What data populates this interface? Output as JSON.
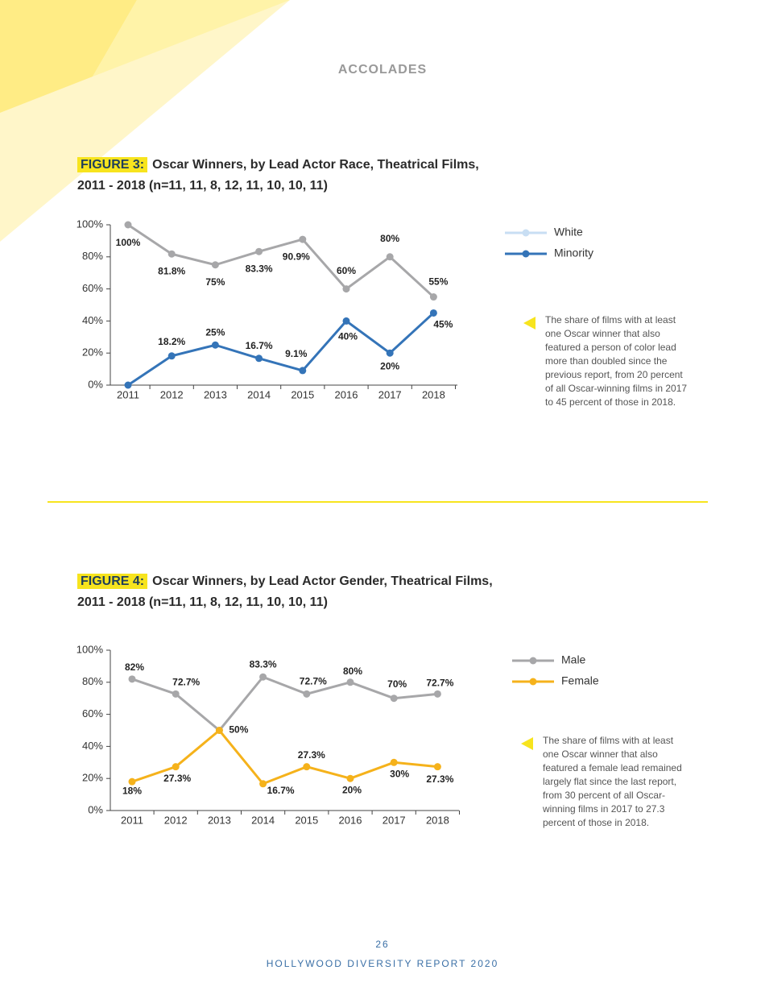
{
  "header": "ACCOLADES",
  "chart_data": [
    {
      "type": "line",
      "figure_label": "FIGURE 3:",
      "title": "Oscar Winners, by Lead Actor Race, Theatrical Films, 2011 - 2018 (n=11, 11, 8, 12, 11, 10, 10, 11)",
      "categories": [
        "2011",
        "2012",
        "2013",
        "2014",
        "2015",
        "2016",
        "2017",
        "2018"
      ],
      "series": [
        {
          "name": "White",
          "color": "#a7a7a9",
          "legend_color": "#c8def3",
          "values": [
            100,
            81.8,
            75,
            83.3,
            90.9,
            60,
            80,
            55
          ],
          "value_labels": [
            "100%",
            "81.8%",
            "75%",
            "83.3%",
            "90.9%",
            "60%",
            "80%",
            "55%"
          ]
        },
        {
          "name": "Minority",
          "color": "#3474b8",
          "legend_color": "#3474b8",
          "values": [
            0,
            18.2,
            25,
            16.7,
            9.1,
            40,
            20,
            45
          ],
          "value_labels": [
            null,
            "18.2%",
            "25%",
            "16.7%",
            "9.1%",
            "40%",
            "20%",
            "45%"
          ]
        }
      ],
      "ylim": [
        0,
        100
      ],
      "yticks": [
        {
          "value": 0,
          "label": "0%"
        },
        {
          "value": 20,
          "label": "20%"
        },
        {
          "value": 40,
          "label": "40%"
        },
        {
          "value": 60,
          "label": "60%"
        },
        {
          "value": 80,
          "label": "80%"
        },
        {
          "value": 100,
          "label": "100%"
        }
      ],
      "note": "The share of films with at least one Oscar winner that also featured a person of color lead more than doubled since the previous report, from 20 percent of all Oscar-winning films in 2017 to 45 percent of those in 2018."
    },
    {
      "type": "line",
      "figure_label": "FIGURE 4:",
      "title": "Oscar Winners, by Lead Actor Gender, Theatrical Films, 2011 - 2018 (n=11, 11, 8, 12, 11, 10, 10, 11)",
      "categories": [
        "2011",
        "2012",
        "2013",
        "2014",
        "2015",
        "2016",
        "2017",
        "2018"
      ],
      "series": [
        {
          "name": "Male",
          "color": "#a7a7a9",
          "legend_color": "#a7a7a9",
          "values": [
            82,
            72.7,
            50,
            83.3,
            72.7,
            80,
            70,
            72.7
          ],
          "value_labels": [
            "82%",
            "72.7%",
            "50%",
            "83.3%",
            "72.7%",
            "80%",
            "70%",
            "72.7%"
          ]
        },
        {
          "name": "Female",
          "color": "#f5b21b",
          "legend_color": "#f5b21b",
          "values": [
            18,
            27.3,
            50,
            16.7,
            27.3,
            20,
            30,
            27.3
          ],
          "value_labels": [
            "18%",
            "27.3%",
            null,
            "16.7%",
            "27.3%",
            "20%",
            "30%",
            "27.3%"
          ]
        }
      ],
      "ylim": [
        0,
        100
      ],
      "yticks": [
        {
          "value": 0,
          "label": "0%"
        },
        {
          "value": 20,
          "label": "20%"
        },
        {
          "value": 40,
          "label": "40%"
        },
        {
          "value": 60,
          "label": "60%"
        },
        {
          "value": 80,
          "label": "80%"
        },
        {
          "value": 100,
          "label": "100%"
        }
      ],
      "note": "The share of films with at least one Oscar winner that also featured a female lead remained largely flat since the last report, from 30 percent of all Oscar-winning films in 2017 to 27.3 percent of those in 2018."
    }
  ],
  "footer": {
    "page_number": "26",
    "report": "HOLLYWOOD DIVERSITY REPORT 2020"
  }
}
